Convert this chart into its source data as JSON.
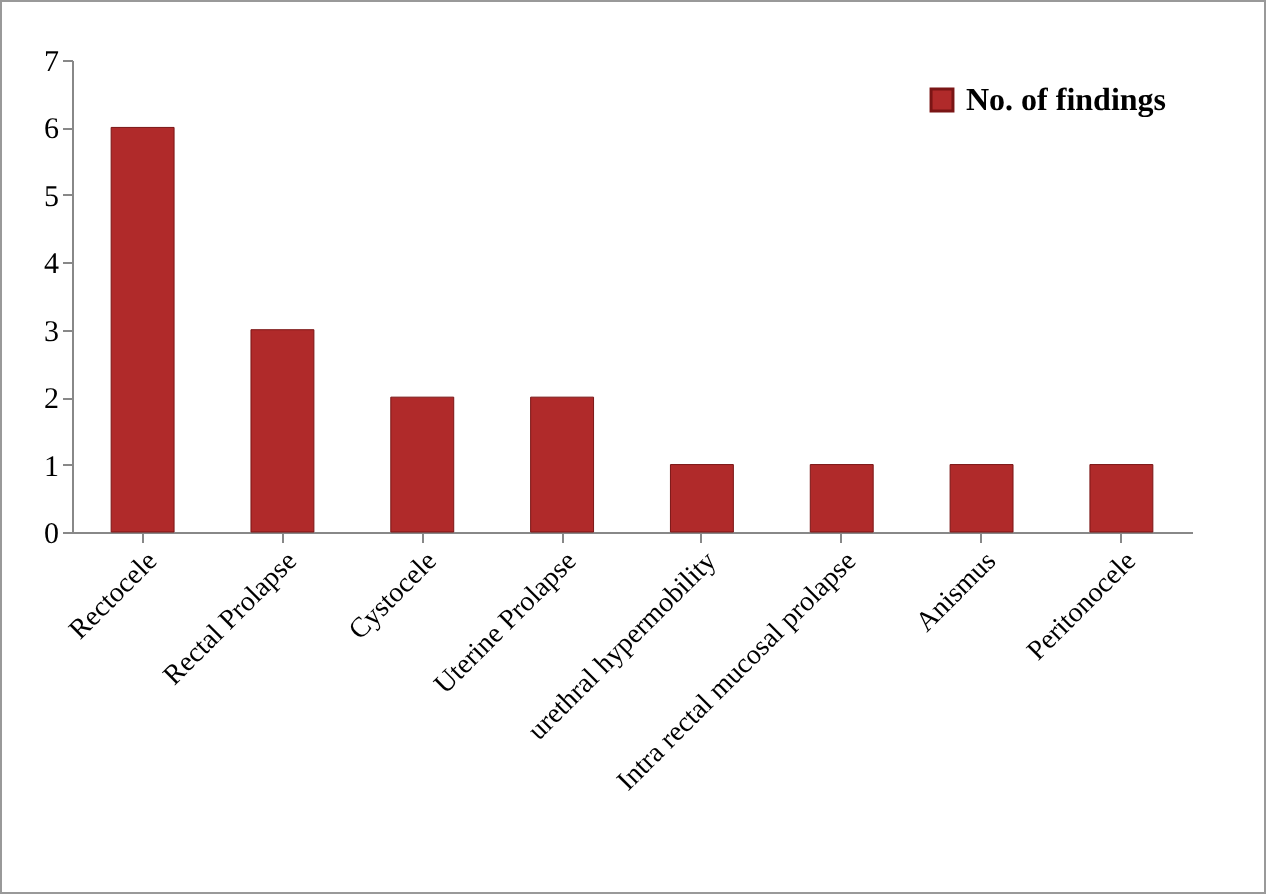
{
  "chart_data": {
    "type": "bar",
    "categories": [
      "Rectocele",
      "Rectal Prolapse",
      "Cystocele",
      "Uterine Prolapse",
      "urethral hypermobility",
      "Intra rectal mucosal prolapse",
      "Anismus",
      "Peritonocele"
    ],
    "series": [
      {
        "name": "No. of findings",
        "color": "#b02a2a",
        "values": [
          6,
          3,
          2,
          2,
          1,
          1,
          1,
          1
        ]
      }
    ],
    "ylim": [
      0,
      7
    ],
    "yticks": [
      0,
      1,
      2,
      3,
      4,
      5,
      6,
      7
    ],
    "grid": false,
    "legend": "top right"
  }
}
